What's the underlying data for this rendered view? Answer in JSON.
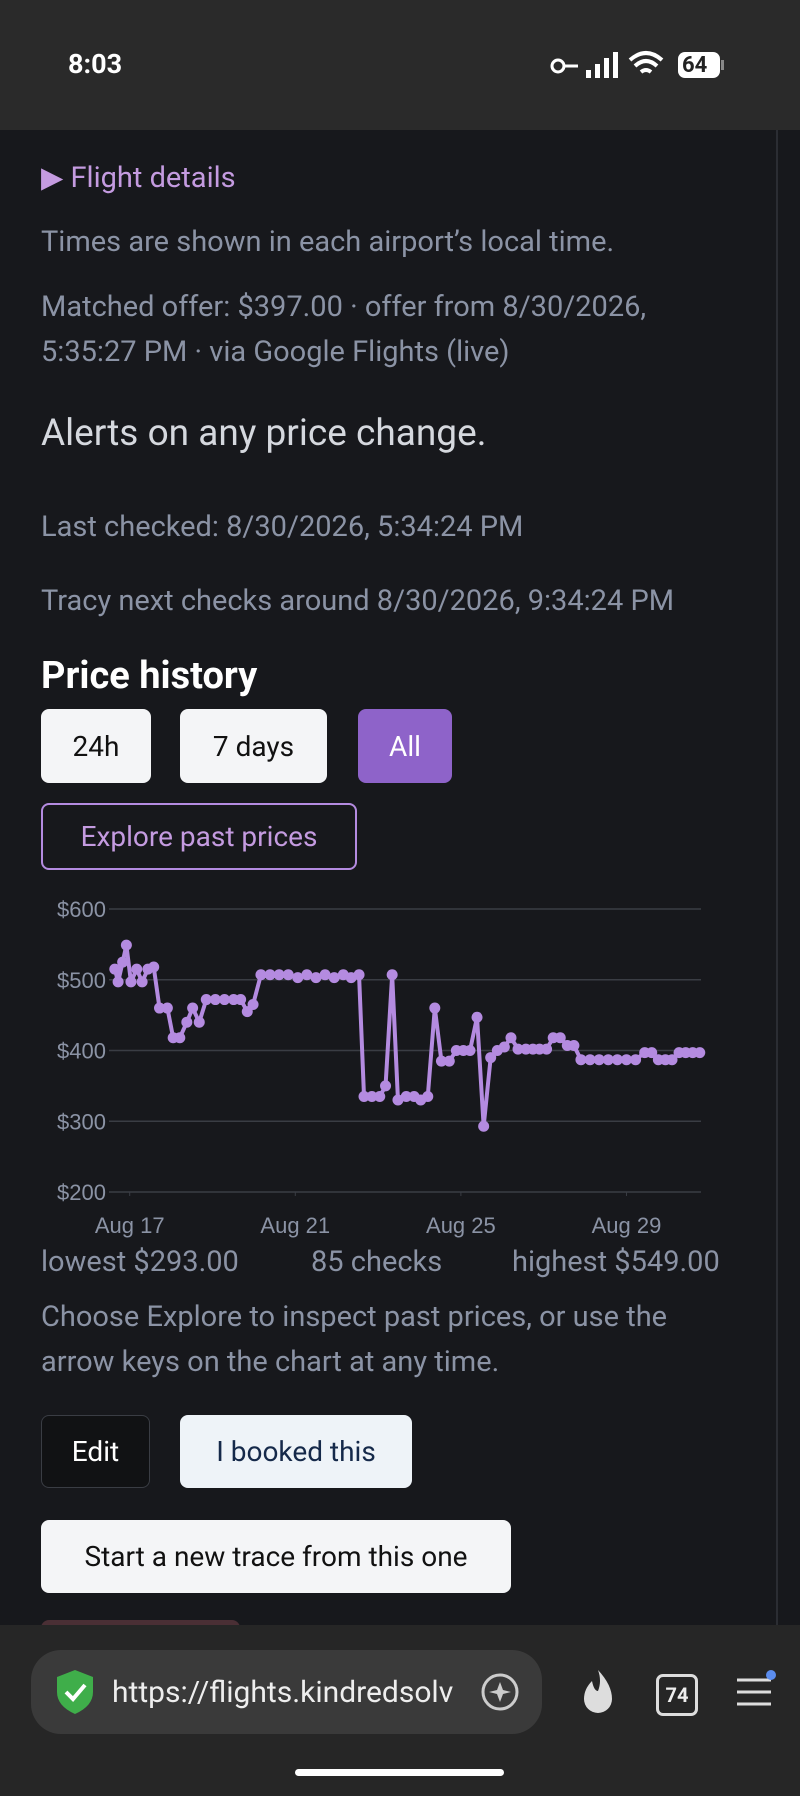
{
  "status_bar": {
    "time": "8:03",
    "battery": "64"
  },
  "details": {
    "toggle": "Flight details",
    "times_note": "Times are shown in each airport’s local time.",
    "matched_line1": "Matched offer: $397.00 · offer from 8/30/2026,",
    "matched_line2": "5:35:27 PM · via Google Flights (live)"
  },
  "alerts": "Alerts on any price change.",
  "last_checked": "Last checked: 8/30/2026, 5:34:24 PM",
  "next_check": "Tracy next checks around 8/30/2026, 9:34:24 PM",
  "price_history": {
    "heading": "Price history",
    "ranges": [
      "24h",
      "7 days",
      "All"
    ],
    "explore": "Explore past prices"
  },
  "chart_data": {
    "type": "line",
    "color": "#b48be0",
    "grid": true,
    "x": [
      16.64,
      16.72,
      16.83,
      16.92,
      17.03,
      17.17,
      17.3,
      17.44,
      17.58,
      17.72,
      17.91,
      18.05,
      18.21,
      18.38,
      18.52,
      18.68,
      18.85,
      19.07,
      19.29,
      19.51,
      19.68,
      19.84,
      19.98,
      20.17,
      20.39,
      20.61,
      20.83,
      21.06,
      21.28,
      21.5,
      21.72,
      21.94,
      22.16,
      22.35,
      22.54,
      22.66,
      22.85,
      23.04,
      23.18,
      23.34,
      23.48,
      23.68,
      23.87,
      24.03,
      24.2,
      24.37,
      24.53,
      24.72,
      24.89,
      25.06,
      25.22,
      25.39,
      25.55,
      25.72,
      25.88,
      26.05,
      26.21,
      26.38,
      26.57,
      26.74,
      26.9,
      27.07,
      27.23,
      27.4,
      27.57,
      27.73,
      27.9,
      28.12,
      28.34,
      28.56,
      28.78,
      29.0,
      29.22,
      29.44,
      29.61,
      29.77,
      29.94,
      30.1,
      30.27,
      30.43,
      30.6,
      30.77
    ],
    "values": [
      515,
      497,
      525,
      549,
      497,
      515,
      497,
      515,
      518,
      460,
      460,
      418,
      418,
      440,
      460,
      440,
      472,
      472,
      472,
      472,
      472,
      455,
      465,
      507,
      507,
      507,
      507,
      503,
      507,
      503,
      507,
      503,
      507,
      503,
      507,
      335,
      335,
      335,
      350,
      507,
      330,
      335,
      335,
      330,
      335,
      460,
      385,
      385,
      400,
      400,
      400,
      447,
      293,
      390,
      400,
      405,
      418,
      402,
      402,
      402,
      402,
      402,
      418,
      418,
      407,
      407,
      387,
      387,
      387,
      387,
      387,
      387,
      387,
      397,
      397,
      387,
      387,
      387,
      397,
      397,
      397,
      397
    ],
    "xlim": [
      16.5,
      30.8
    ],
    "xticks": [
      {
        "value": 17,
        "label": "Aug 17"
      },
      {
        "value": 21,
        "label": "Aug 21"
      },
      {
        "value": 25,
        "label": "Aug 25"
      },
      {
        "value": 29,
        "label": "Aug 29"
      }
    ],
    "ylim": [
      200,
      600
    ],
    "yticks": [
      {
        "value": 200,
        "label": "$200"
      },
      {
        "value": 300,
        "label": "$300"
      },
      {
        "value": 400,
        "label": "$400"
      },
      {
        "value": 500,
        "label": "$500"
      },
      {
        "value": 600,
        "label": "$600"
      }
    ]
  },
  "stats": {
    "lowest": "lowest $293.00",
    "checks": "85 checks",
    "highest": "highest $549.00"
  },
  "hint": {
    "line1": "Choose Explore to inspect past prices, or use the",
    "line2": "arrow keys on the chart at any time."
  },
  "actions": {
    "edit": "Edit",
    "booked": "I booked this",
    "new_trace": "Start a new trace from this one"
  },
  "browser": {
    "url": "https://flights.kindredsolv",
    "tabs": "74"
  }
}
